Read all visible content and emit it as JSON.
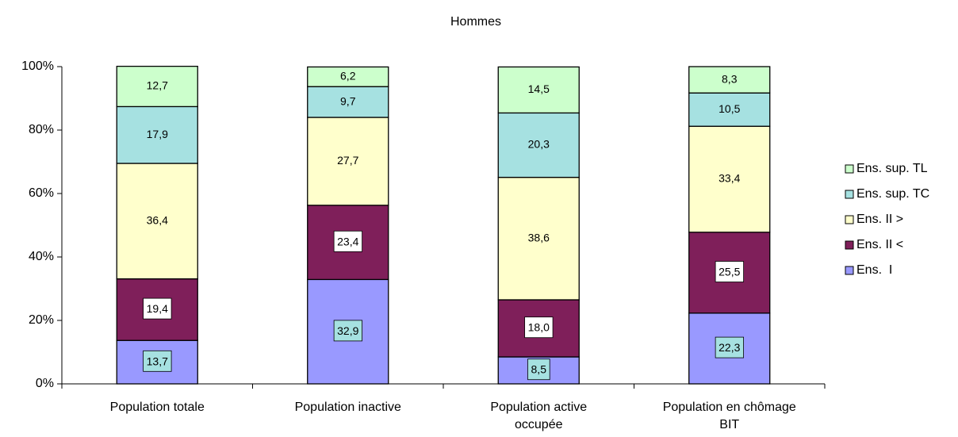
{
  "chart_data": {
    "type": "stacked_bar_100",
    "title": "Hommes",
    "categories": [
      "Population totale",
      "Population inactive",
      "Population active occupée",
      "Population en chômage BIT"
    ],
    "series": [
      {
        "name": "Ens.  I",
        "color": "#9999ff",
        "values": [
          13.7,
          32.9,
          8.5,
          22.3
        ],
        "value_labels": [
          "13,7",
          "32,9",
          "8,5",
          "22,3"
        ]
      },
      {
        "name": "Ens. II <",
        "color": "#7f1f5a",
        "values": [
          19.4,
          23.4,
          18.0,
          25.5
        ],
        "value_labels": [
          "19,4",
          "23,4",
          "18,0",
          "25,5"
        ]
      },
      {
        "name": "Ens. II >",
        "color": "#ffffcc",
        "values": [
          36.4,
          27.7,
          38.6,
          33.4
        ],
        "value_labels": [
          "36,4",
          "27,7",
          "38,6",
          "33,4"
        ]
      },
      {
        "name": "Ens. sup. TC",
        "color": "#a6e1e1",
        "values": [
          17.9,
          9.7,
          20.3,
          10.5
        ],
        "value_labels": [
          "17,9",
          "9,7",
          "20,3",
          "10,5"
        ]
      },
      {
        "name": "Ens. sup. TL",
        "color": "#ccffcc",
        "values": [
          12.7,
          6.2,
          14.5,
          8.3
        ],
        "value_labels": [
          "12,7",
          "6,2",
          "14,5",
          "8,3"
        ]
      }
    ],
    "ylim": [
      0,
      100
    ],
    "yticks": [
      {
        "value": 0,
        "label": "0%"
      },
      {
        "value": 20,
        "label": "20%"
      },
      {
        "value": 40,
        "label": "40%"
      },
      {
        "value": 60,
        "label": "60%"
      },
      {
        "value": 80,
        "label": "80%"
      },
      {
        "value": 100,
        "label": "100%"
      }
    ],
    "legend": "right"
  }
}
